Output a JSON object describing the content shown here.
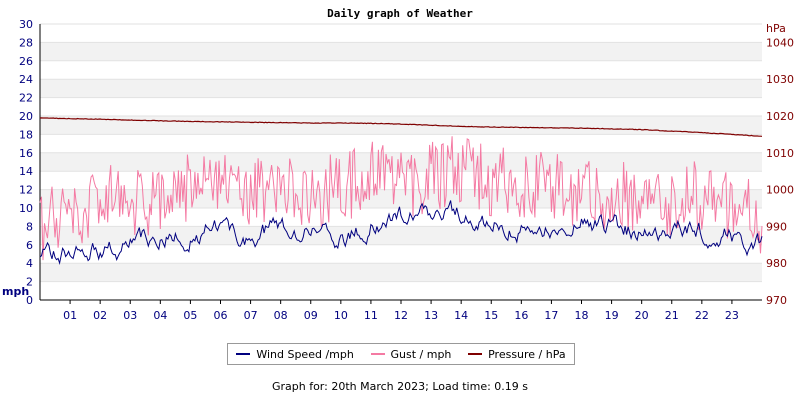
{
  "chart_data": {
    "type": "line",
    "title": "Daily graph of Weather",
    "x_tick_labels": [
      "01",
      "02",
      "03",
      "04",
      "05",
      "06",
      "07",
      "08",
      "09",
      "10",
      "11",
      "12",
      "13",
      "14",
      "15",
      "16",
      "17",
      "18",
      "19",
      "20",
      "21",
      "22",
      "23"
    ],
    "y_left": {
      "unit": "mph",
      "range": [
        0,
        30
      ],
      "ticks": [
        0,
        2,
        4,
        6,
        8,
        10,
        12,
        14,
        16,
        18,
        20,
        22,
        24,
        26,
        28,
        30
      ]
    },
    "y_right": {
      "unit": "hPa",
      "range": [
        970,
        1045
      ],
      "ticks": [
        970,
        980,
        990,
        1000,
        1010,
        1020,
        1030,
        1040
      ]
    },
    "grid": "horizontal alternating bands",
    "legend_placement": "bottom",
    "series": [
      {
        "name": "Wind Speed /mph",
        "color": "#00007f",
        "axis": "left",
        "x": [
          0,
          1,
          2,
          3,
          4,
          5,
          6,
          7,
          8,
          9,
          10,
          11,
          12,
          13,
          14,
          15,
          16,
          17,
          18,
          19,
          20,
          21,
          22,
          23,
          24
        ],
        "values": [
          5.2,
          4.8,
          5.3,
          6.1,
          6.5,
          7.3,
          7.8,
          6.9,
          8.2,
          7.6,
          6.2,
          8.3,
          8.9,
          9.5,
          9.2,
          8.1,
          8.0,
          7.6,
          8.3,
          8.4,
          7.0,
          7.7,
          7.2,
          6.9,
          6.2
        ]
      },
      {
        "name": "Gust / mph",
        "color": "#f47aa3",
        "axis": "left",
        "x": [
          0,
          1,
          2,
          3,
          4,
          5,
          6,
          7,
          8,
          9,
          10,
          11,
          12,
          13,
          14,
          15,
          16,
          17,
          18,
          19,
          20,
          21,
          22,
          23,
          24
        ],
        "values": [
          8.0,
          9.5,
          10.5,
          11.2,
          9.8,
          12.5,
          12.0,
          11.0,
          13.0,
          11.5,
          12.0,
          13.5,
          12.5,
          13.5,
          14.0,
          12.8,
          12.5,
          13.0,
          11.5,
          11.5,
          11.0,
          10.8,
          11.5,
          10.5,
          8.5
        ]
      },
      {
        "name": "Pressure / hPa",
        "color": "#7f0000",
        "axis": "right",
        "x": [
          0,
          1,
          2,
          3,
          4,
          5,
          6,
          7,
          8,
          9,
          10,
          11,
          12,
          13,
          14,
          15,
          16,
          17,
          18,
          19,
          20,
          21,
          22,
          23,
          24
        ],
        "values": [
          1019.5,
          1019.3,
          1019.1,
          1018.9,
          1018.7,
          1018.5,
          1018.4,
          1018.3,
          1018.2,
          1018.1,
          1018.1,
          1018.0,
          1017.8,
          1017.5,
          1017.2,
          1017.0,
          1016.9,
          1016.8,
          1016.7,
          1016.5,
          1016.3,
          1015.9,
          1015.5,
          1015.0,
          1014.5
        ]
      }
    ]
  },
  "footer_text": "Graph for: 20th March 2023; Load time: 0.19 s"
}
